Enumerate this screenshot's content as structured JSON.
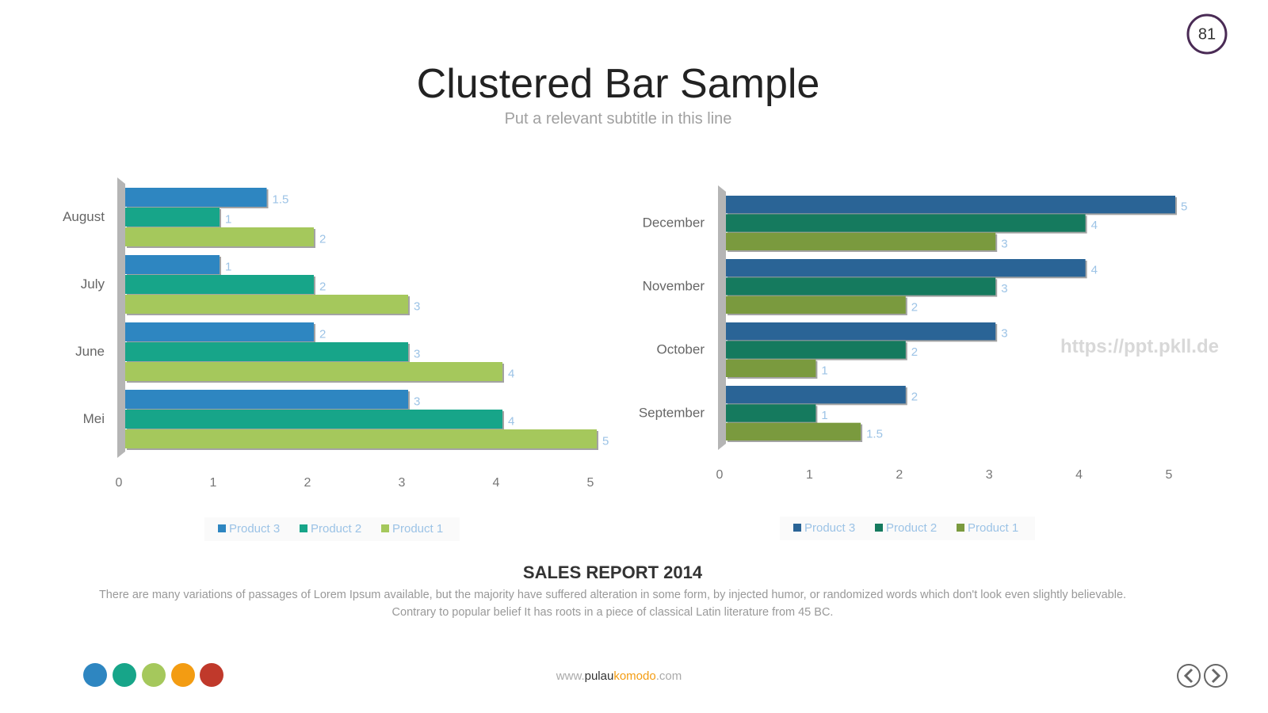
{
  "page_number": "81",
  "title": "Clustered Bar Sample",
  "subtitle": "Put a relevant subtitle in this line",
  "watermark": "https://ppt.pkll.de",
  "chart_data": [
    {
      "type": "bar",
      "orientation": "horizontal",
      "categories": [
        "Mei",
        "June",
        "July",
        "August"
      ],
      "series": [
        {
          "name": "Product 3",
          "color": "#2e86c1",
          "values": [
            3,
            2,
            1,
            1.5
          ]
        },
        {
          "name": "Product 2",
          "color": "#17a589",
          "values": [
            4,
            3,
            2,
            1
          ]
        },
        {
          "name": "Product 1",
          "color": "#a5c85c",
          "values": [
            5,
            4,
            3,
            2
          ]
        }
      ],
      "xlim": [
        0,
        5
      ],
      "xticks": [
        0,
        1,
        2,
        3,
        4,
        5
      ],
      "legend": "bottom"
    },
    {
      "type": "bar",
      "orientation": "horizontal",
      "categories": [
        "September",
        "October",
        "November",
        "December"
      ],
      "series": [
        {
          "name": "Product 3",
          "color": "#2a6496",
          "values": [
            2,
            3,
            4,
            5
          ]
        },
        {
          "name": "Product 2",
          "color": "#157a5e",
          "values": [
            1,
            2,
            3,
            4
          ]
        },
        {
          "name": "Product 1",
          "color": "#7a9a3e",
          "values": [
            1.5,
            1,
            2,
            3
          ]
        }
      ],
      "xlim": [
        0,
        5
      ],
      "xticks": [
        0,
        1,
        2,
        3,
        4,
        5
      ],
      "legend": "bottom"
    }
  ],
  "report": {
    "heading": "SALES REPORT 2014",
    "body": "There are many variations of passages of Lorem Ipsum available, but the majority have suffered alteration in some form, by injected humor, or randomized words which don't look even slightly believable. Contrary to popular belief It has roots in a piece of classical Latin literature from 45 BC."
  },
  "footer": {
    "prefix": "www.",
    "brand_a": "pulau",
    "brand_b": "komodo",
    "suffix": ".com"
  }
}
